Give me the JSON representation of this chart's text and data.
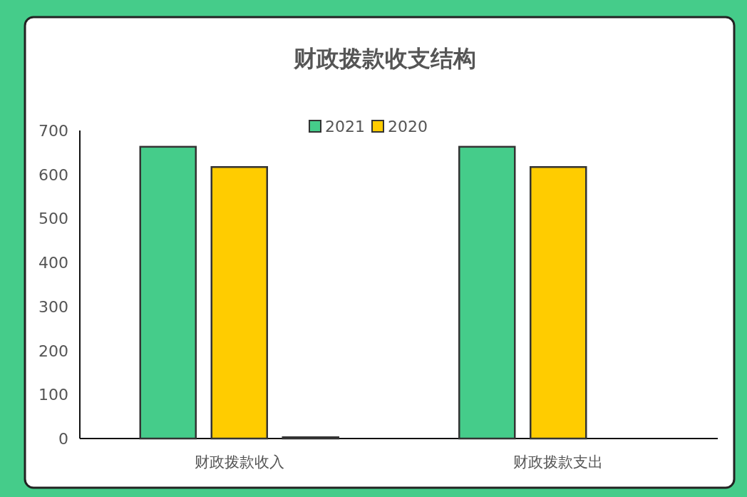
{
  "chart_data": {
    "type": "bar",
    "title": "财政拨款收支结构",
    "categories": [
      "财政拨款收入",
      "财政拨款支出"
    ],
    "series": [
      {
        "name": "2021",
        "color": "#45cc8a",
        "values": [
          663,
          663
        ]
      },
      {
        "name": "2020",
        "color": "#ffcc00",
        "values": [
          617,
          617
        ]
      },
      {
        "color": "#333333",
        "values": [
          3,
          null
        ]
      }
    ],
    "ylim": [
      0,
      700
    ],
    "yticks": [
      0,
      100,
      200,
      300,
      400,
      500,
      600,
      700
    ],
    "legend": "top",
    "grid": false
  }
}
